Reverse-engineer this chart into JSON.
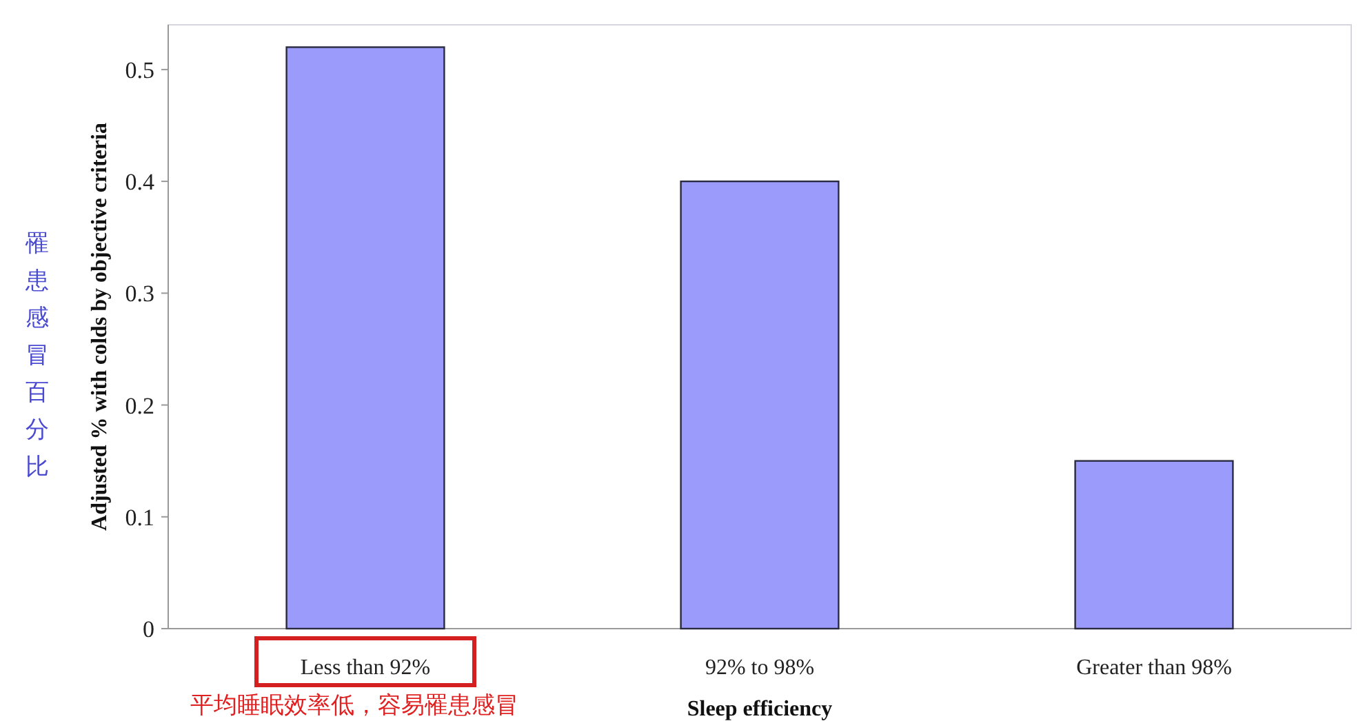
{
  "chart_data": {
    "type": "bar",
    "categories": [
      "Less than 92%",
      "92% to 98%",
      "Greater than 98%"
    ],
    "values": [
      0.52,
      0.4,
      0.15
    ],
    "color": "#9b9bfb",
    "xlabel": "Sleep efficiency",
    "ylabel": "Adjusted % with colds by objective criteria",
    "ylim": [
      0,
      0.54
    ],
    "yticks": [
      0,
      0.1,
      0.2,
      0.3,
      0.4,
      0.5
    ],
    "grid": false,
    "annotations": [
      "罹患感冒百分比",
      "平均睡眠效率低，容易罹患感冒"
    ]
  }
}
